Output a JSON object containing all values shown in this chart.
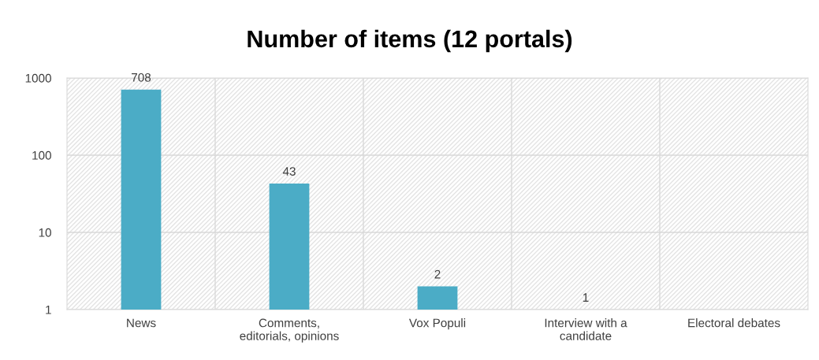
{
  "chart_data": {
    "type": "bar",
    "title": "Number of items (12 portals)",
    "categories": [
      "News",
      "Comments,\neditorials, opinions",
      "Vox Populi",
      "Interview with a\ncandidate",
      "Electoral debates"
    ],
    "values": [
      708,
      43,
      2,
      1,
      null
    ],
    "value_labels": [
      "708",
      "43",
      "2",
      "1",
      null
    ],
    "color": "#4bacc6",
    "log": true,
    "ylim": [
      1,
      1000
    ],
    "yticks": [
      1,
      10,
      100,
      1000
    ],
    "grid": true
  }
}
